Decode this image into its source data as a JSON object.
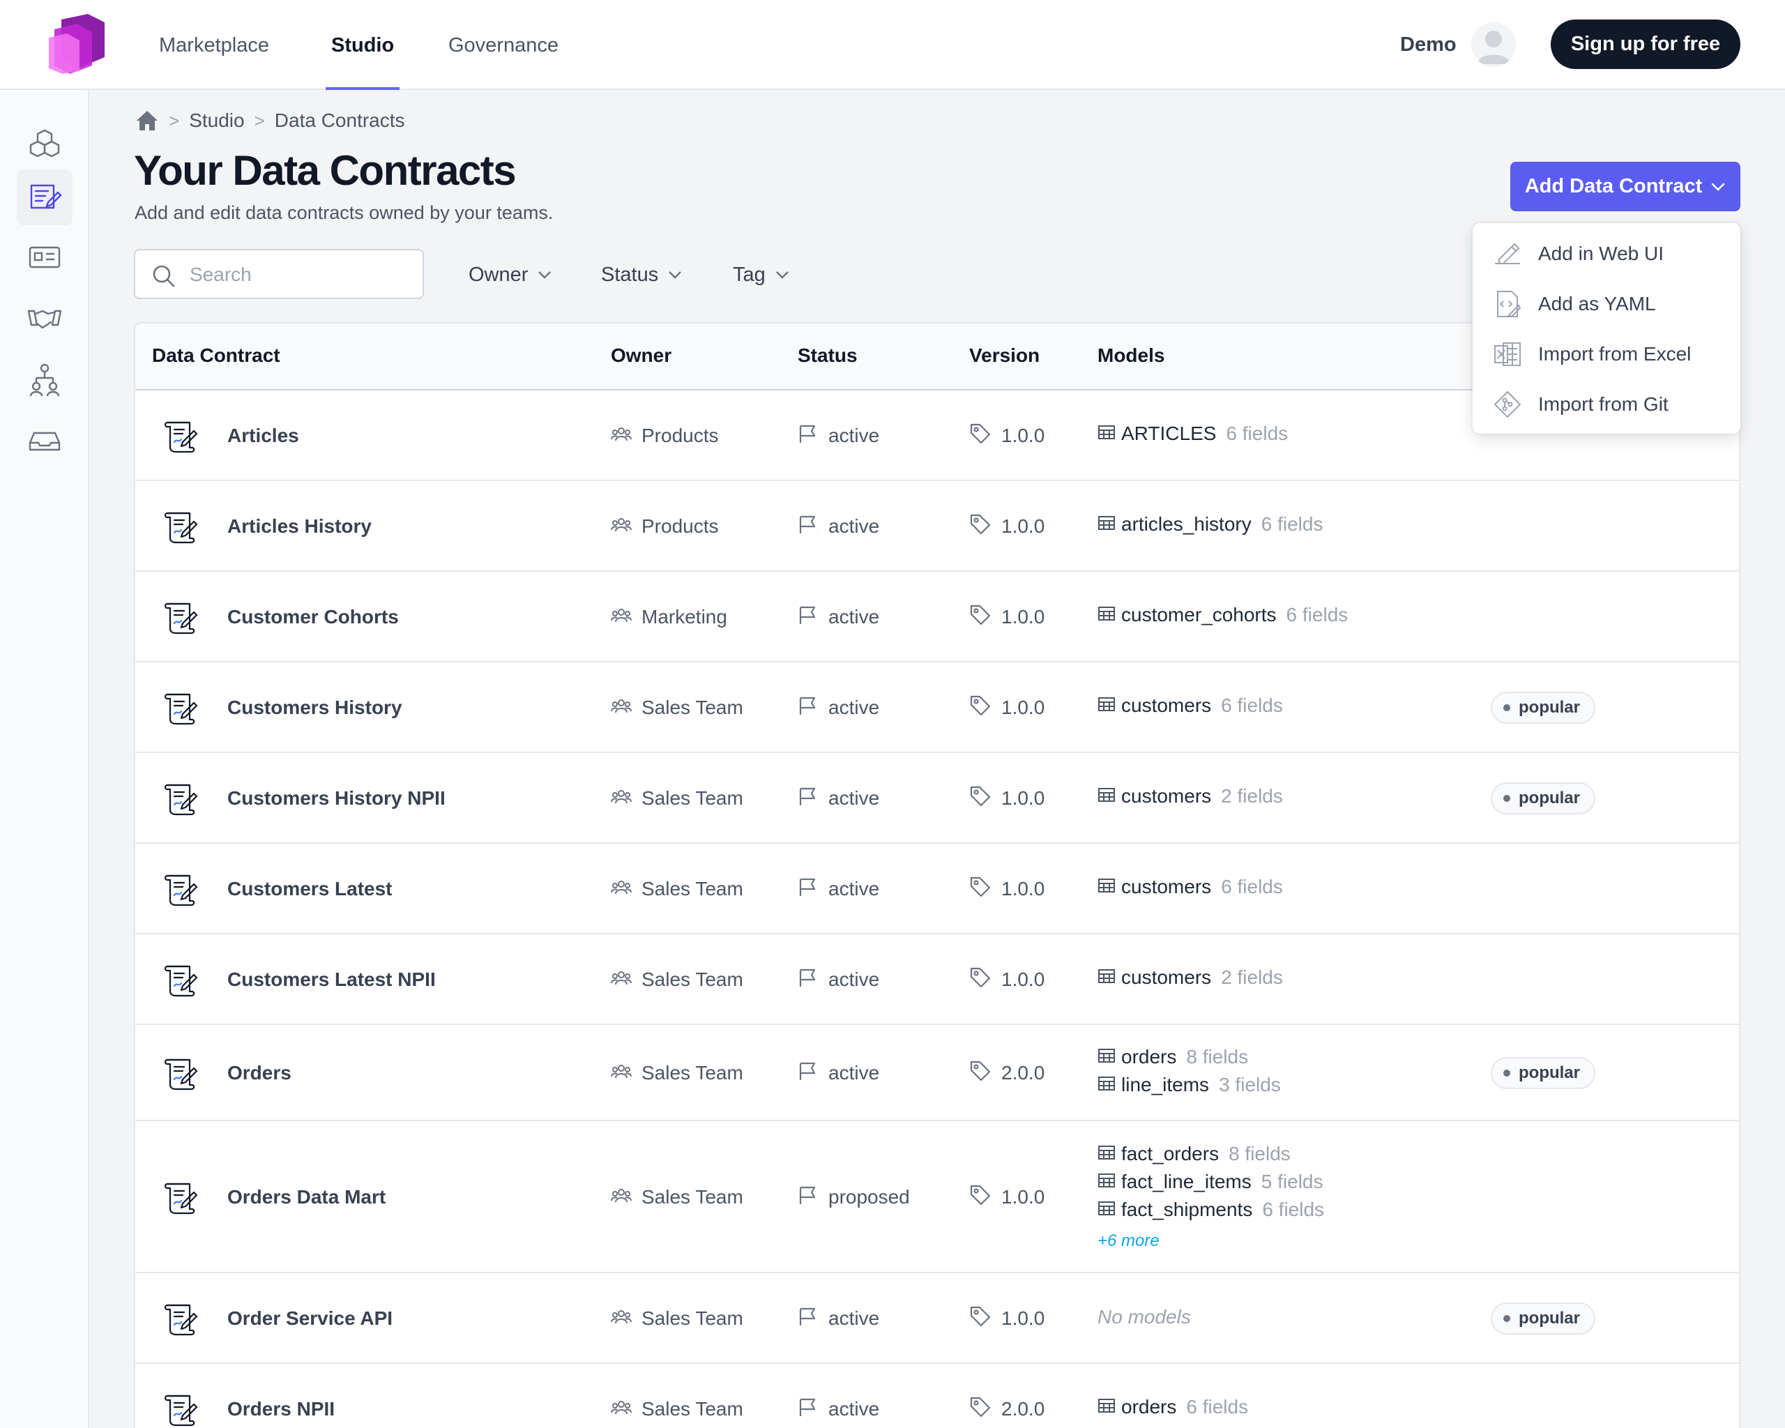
{
  "nav": {
    "tabs": [
      {
        "label": "Marketplace"
      },
      {
        "label": "Studio"
      },
      {
        "label": "Governance"
      }
    ],
    "demo_label": "Demo",
    "signup_label": "Sign up for free"
  },
  "sidebar": {
    "items": [
      {
        "icon": "cubes-icon"
      },
      {
        "icon": "contract-icon"
      },
      {
        "icon": "id-card-icon"
      },
      {
        "icon": "handshake-icon"
      },
      {
        "icon": "hierarchy-icon"
      },
      {
        "icon": "inbox-icon"
      }
    ]
  },
  "breadcrumb": {
    "items": [
      "Studio",
      "Data Contracts"
    ]
  },
  "page": {
    "title": "Your Data Contracts",
    "subtitle": "Add and edit data contracts owned by your teams.",
    "add_button": "Add Data Contract"
  },
  "search": {
    "placeholder": "Search",
    "value": ""
  },
  "filters": [
    "Owner",
    "Status",
    "Tag"
  ],
  "menu": {
    "items": [
      {
        "label": "Add in Web UI",
        "icon": "pencil-edit-icon"
      },
      {
        "label": "Add as YAML",
        "icon": "code-file-icon"
      },
      {
        "label": "Import from Excel",
        "icon": "excel-icon"
      },
      {
        "label": "Import from Git",
        "icon": "git-icon"
      }
    ]
  },
  "table": {
    "headers": [
      "Data Contract",
      "Owner",
      "Status",
      "Version",
      "Models"
    ],
    "rows": [
      {
        "name": "Articles",
        "owner": "Products",
        "status": "active",
        "version": "1.0.0",
        "models": [
          {
            "name": "ARTICLES",
            "fields": "6 fields"
          }
        ],
        "tag": ""
      },
      {
        "name": "Articles History",
        "owner": "Products",
        "status": "active",
        "version": "1.0.0",
        "models": [
          {
            "name": "articles_history",
            "fields": "6 fields"
          }
        ],
        "tag": ""
      },
      {
        "name": "Customer Cohorts",
        "owner": "Marketing",
        "status": "active",
        "version": "1.0.0",
        "models": [
          {
            "name": "customer_cohorts",
            "fields": "6 fields"
          }
        ],
        "tag": ""
      },
      {
        "name": "Customers History",
        "owner": "Sales Team",
        "status": "active",
        "version": "1.0.0",
        "models": [
          {
            "name": "customers",
            "fields": "6 fields"
          }
        ],
        "tag": "popular"
      },
      {
        "name": "Customers History NPII",
        "owner": "Sales Team",
        "status": "active",
        "version": "1.0.0",
        "models": [
          {
            "name": "customers",
            "fields": "2 fields"
          }
        ],
        "tag": "popular"
      },
      {
        "name": "Customers Latest",
        "owner": "Sales Team",
        "status": "active",
        "version": "1.0.0",
        "models": [
          {
            "name": "customers",
            "fields": "6 fields"
          }
        ],
        "tag": ""
      },
      {
        "name": "Customers Latest NPII",
        "owner": "Sales Team",
        "status": "active",
        "version": "1.0.0",
        "models": [
          {
            "name": "customers",
            "fields": "2 fields"
          }
        ],
        "tag": ""
      },
      {
        "name": "Orders",
        "owner": "Sales Team",
        "status": "active",
        "version": "2.0.0",
        "models": [
          {
            "name": "orders",
            "fields": "8 fields"
          },
          {
            "name": "line_items",
            "fields": "3 fields"
          }
        ],
        "tag": "popular"
      },
      {
        "name": "Orders Data Mart",
        "owner": "Sales Team",
        "status": "proposed",
        "version": "1.0.0",
        "models": [
          {
            "name": "fact_orders",
            "fields": "8 fields"
          },
          {
            "name": "fact_line_items",
            "fields": "5 fields"
          },
          {
            "name": "fact_shipments",
            "fields": "6 fields"
          }
        ],
        "more": "+6 more",
        "tag": ""
      },
      {
        "name": "Order Service API",
        "owner": "Sales Team",
        "status": "active",
        "version": "1.0.0",
        "models": [],
        "no_models": "No models",
        "tag": "popular"
      },
      {
        "name": "Orders NPII",
        "owner": "Sales Team",
        "status": "active",
        "version": "2.0.0",
        "models": [
          {
            "name": "orders",
            "fields": "6 fields"
          }
        ],
        "tag": ""
      }
    ]
  },
  "colors": {
    "accent": "#5b5cf0",
    "logo_pink": "#e04bd8",
    "logo_purple": "#8b1fa6",
    "dark_button": "#111827"
  }
}
